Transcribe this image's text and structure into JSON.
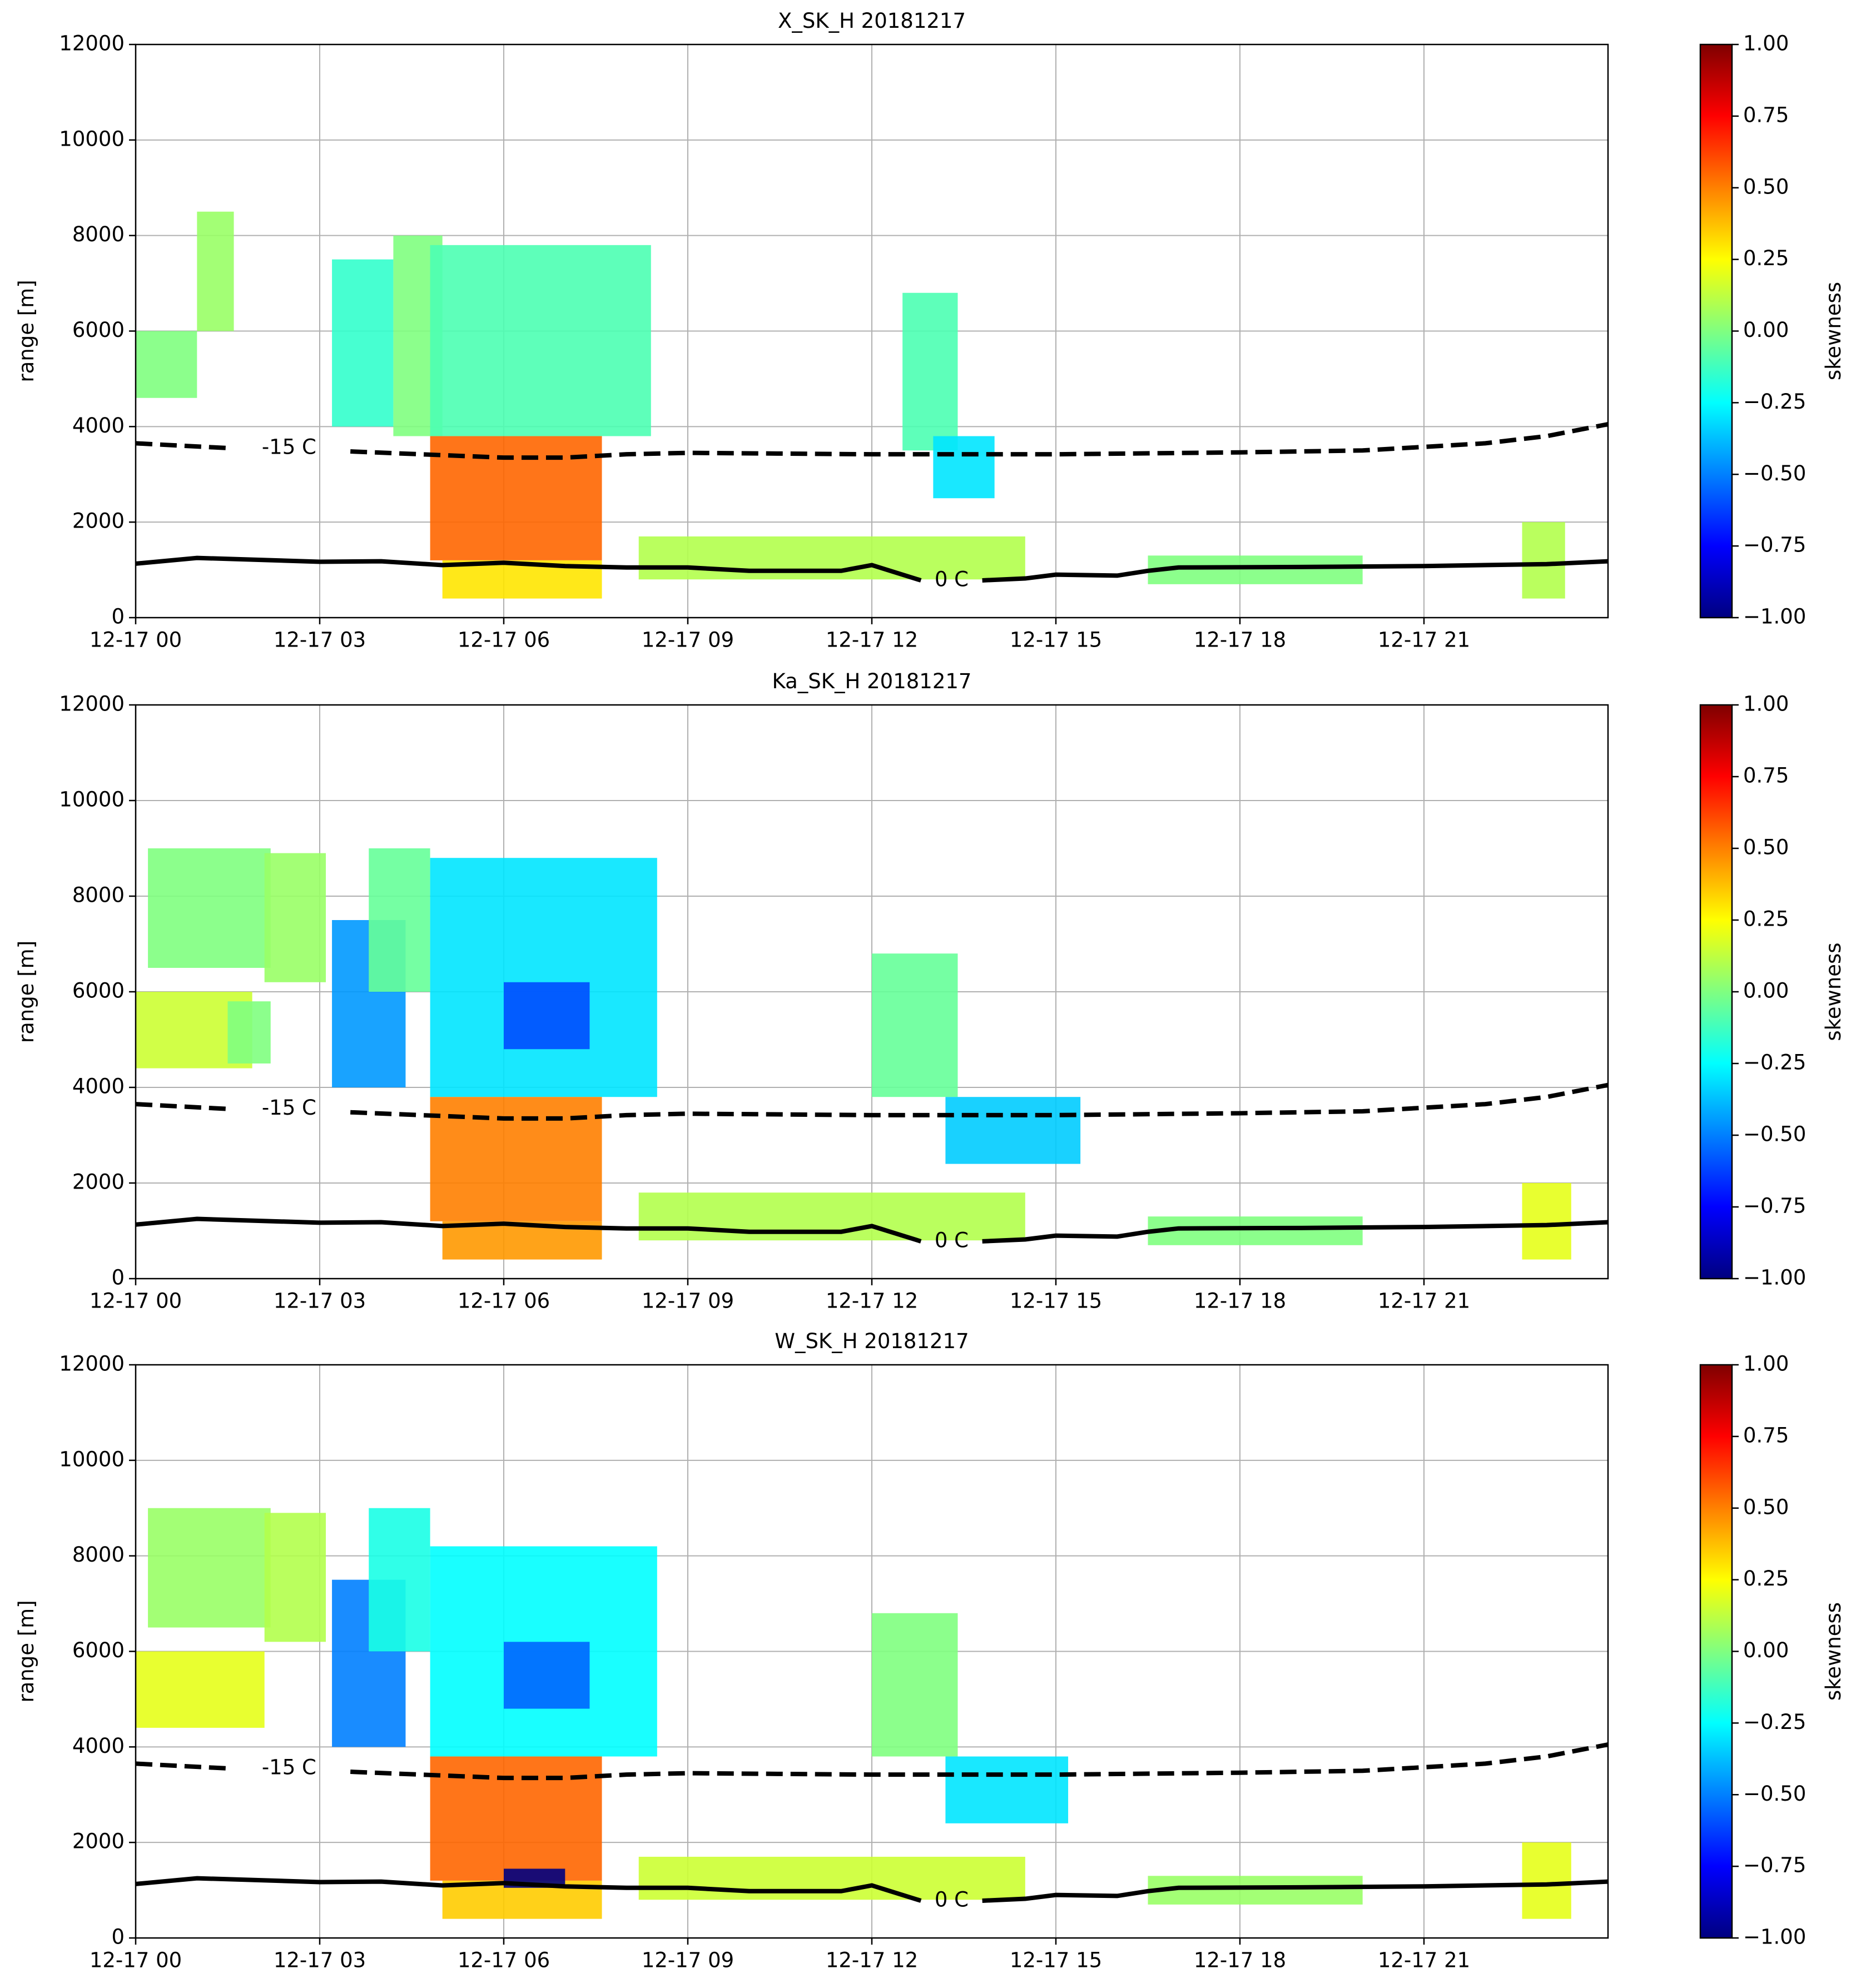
{
  "chart_data": [
    {
      "type": "heatmap",
      "title": "X_SK_H 20181217",
      "ylabel": "range [m]",
      "colorbar_label": "skewness",
      "cmap": "jet",
      "clim": [
        -1,
        1
      ],
      "cticks": [
        {
          "value": 1,
          "label": "1.00"
        },
        {
          "value": 0.75,
          "label": "0.75"
        },
        {
          "value": 0.5,
          "label": "0.50"
        },
        {
          "value": 0.25,
          "label": "0.25"
        },
        {
          "value": 0,
          "label": "0.00"
        },
        {
          "value": -0.25,
          "label": "−0.25"
        },
        {
          "value": -0.5,
          "label": "−0.50"
        },
        {
          "value": -0.75,
          "label": "−0.75"
        },
        {
          "value": -1,
          "label": "−1.00"
        }
      ],
      "xlim": [
        0,
        24
      ],
      "xticks": [
        {
          "value": 0,
          "label": "12-17 00"
        },
        {
          "value": 3,
          "label": "12-17 03"
        },
        {
          "value": 6,
          "label": "12-17 06"
        },
        {
          "value": 9,
          "label": "12-17 09"
        },
        {
          "value": 12,
          "label": "12-17 12"
        },
        {
          "value": 15,
          "label": "12-17 15"
        },
        {
          "value": 18,
          "label": "12-17 18"
        },
        {
          "value": 21,
          "label": "12-17 21"
        }
      ],
      "ylim": [
        0,
        12000
      ],
      "yticks": [
        0,
        2000,
        4000,
        6000,
        8000,
        10000,
        12000
      ],
      "grid": true,
      "cells": [
        {
          "x": [
            0,
            1
          ],
          "y": [
            4600,
            6000
          ],
          "value": 0.0
        },
        {
          "x": [
            1,
            1.6
          ],
          "y": [
            6000,
            8500
          ],
          "value": 0.05
        },
        {
          "x": [
            3.2,
            4.2
          ],
          "y": [
            4000,
            7500
          ],
          "value": -0.15
        },
        {
          "x": [
            4.2,
            5
          ],
          "y": [
            3800,
            8000
          ],
          "value": 0.0
        },
        {
          "x": [
            4.8,
            8.4
          ],
          "y": [
            3800,
            7800
          ],
          "value": -0.1
        },
        {
          "x": [
            4.8,
            7.6
          ],
          "y": [
            1200,
            3800
          ],
          "value": 0.55
        },
        {
          "x": [
            5,
            7.6
          ],
          "y": [
            400,
            1200
          ],
          "value": 0.3
        },
        {
          "x": [
            8.2,
            14.5
          ],
          "y": [
            800,
            1700
          ],
          "value": 0.1
        },
        {
          "x": [
            12.5,
            13.4
          ],
          "y": [
            3500,
            6800
          ],
          "value": -0.1
        },
        {
          "x": [
            13,
            14
          ],
          "y": [
            2500,
            3800
          ],
          "value": -0.3
        },
        {
          "x": [
            16.5,
            20
          ],
          "y": [
            700,
            1300
          ],
          "value": 0.0
        },
        {
          "x": [
            22.6,
            23.3
          ],
          "y": [
            400,
            2000
          ],
          "value": 0.1
        }
      ],
      "series": [
        {
          "name": "-15 C",
          "color": "#000000",
          "style": "dashed",
          "x": [
            0,
            1.5,
            2.5,
            3.5,
            6,
            7,
            8,
            9,
            12,
            15,
            18,
            20,
            22,
            23,
            24
          ],
          "values": [
            3650,
            3550,
            null,
            3480,
            3350,
            3350,
            3420,
            3450,
            3420,
            3420,
            3460,
            3500,
            3650,
            3800,
            4050
          ]
        },
        {
          "name": "0 C",
          "color": "#000000",
          "style": "solid",
          "x": [
            0,
            1,
            3,
            4,
            5,
            6,
            7,
            8,
            9,
            10,
            11.5,
            12,
            12.5,
            12.8,
            13.3,
            13.8,
            14.5,
            15,
            16,
            16.5,
            17,
            19,
            21,
            23,
            24
          ],
          "values": [
            1130,
            1250,
            1170,
            1180,
            1100,
            1150,
            1080,
            1050,
            1050,
            980,
            980,
            1100,
            900,
            780,
            null,
            780,
            820,
            900,
            880,
            980,
            1050,
            1060,
            1080,
            1120,
            1180
          ]
        }
      ]
    },
    {
      "type": "heatmap",
      "title": "Ka_SK_H 20181217",
      "ylabel": "range [m]",
      "colorbar_label": "skewness",
      "cmap": "jet",
      "clim": [
        -1,
        1
      ],
      "cticks": [
        {
          "value": 1,
          "label": "1.00"
        },
        {
          "value": 0.75,
          "label": "0.75"
        },
        {
          "value": 0.5,
          "label": "0.50"
        },
        {
          "value": 0.25,
          "label": "0.25"
        },
        {
          "value": 0,
          "label": "0.00"
        },
        {
          "value": -0.25,
          "label": "−0.25"
        },
        {
          "value": -0.5,
          "label": "−0.50"
        },
        {
          "value": -0.75,
          "label": "−0.75"
        },
        {
          "value": -1,
          "label": "−1.00"
        }
      ],
      "xlim": [
        0,
        24
      ],
      "xticks": [
        {
          "value": 0,
          "label": "12-17 00"
        },
        {
          "value": 3,
          "label": "12-17 03"
        },
        {
          "value": 6,
          "label": "12-17 06"
        },
        {
          "value": 9,
          "label": "12-17 09"
        },
        {
          "value": 12,
          "label": "12-17 12"
        },
        {
          "value": 15,
          "label": "12-17 15"
        },
        {
          "value": 18,
          "label": "12-17 18"
        },
        {
          "value": 21,
          "label": "12-17 21"
        }
      ],
      "ylim": [
        0,
        12000
      ],
      "yticks": [
        0,
        2000,
        4000,
        6000,
        8000,
        10000,
        12000
      ],
      "grid": true,
      "cells": [
        {
          "x": [
            0,
            1.9
          ],
          "y": [
            4400,
            6000
          ],
          "value": 0.15
        },
        {
          "x": [
            0.2,
            2.2
          ],
          "y": [
            6500,
            9000
          ],
          "value": 0.0
        },
        {
          "x": [
            2.1,
            3.1
          ],
          "y": [
            6200,
            8900
          ],
          "value": 0.05
        },
        {
          "x": [
            1.5,
            2.2
          ],
          "y": [
            4500,
            5800
          ],
          "value": 0.0
        },
        {
          "x": [
            3.2,
            4.4
          ],
          "y": [
            4000,
            7500
          ],
          "value": -0.45
        },
        {
          "x": [
            3.8,
            4.8
          ],
          "y": [
            6000,
            9000
          ],
          "value": -0.05
        },
        {
          "x": [
            4.8,
            8.5
          ],
          "y": [
            3800,
            8800
          ],
          "value": -0.3
        },
        {
          "x": [
            6,
            7.4
          ],
          "y": [
            4800,
            6200
          ],
          "value": -0.6
        },
        {
          "x": [
            4.8,
            7.6
          ],
          "y": [
            1200,
            3800
          ],
          "value": 0.5
        },
        {
          "x": [
            5,
            7.6
          ],
          "y": [
            400,
            1200
          ],
          "value": 0.45
        },
        {
          "x": [
            8.2,
            14.5
          ],
          "y": [
            800,
            1800
          ],
          "value": 0.1
        },
        {
          "x": [
            12,
            13.4
          ],
          "y": [
            3800,
            6800
          ],
          "value": -0.05
        },
        {
          "x": [
            13.2,
            15.4
          ],
          "y": [
            2400,
            3800
          ],
          "value": -0.35
        },
        {
          "x": [
            16.5,
            20
          ],
          "y": [
            700,
            1300
          ],
          "value": 0.0
        },
        {
          "x": [
            22.6,
            23.4
          ],
          "y": [
            400,
            2000
          ],
          "value": 0.2
        }
      ],
      "series": [
        {
          "name": "-15 C",
          "color": "#000000",
          "style": "dashed",
          "x": [
            0,
            1.5,
            2.5,
            3.5,
            6,
            7,
            8,
            9,
            12,
            15,
            18,
            20,
            22,
            23,
            24
          ],
          "values": [
            3650,
            3550,
            null,
            3480,
            3350,
            3350,
            3420,
            3450,
            3420,
            3420,
            3460,
            3500,
            3650,
            3800,
            4050
          ]
        },
        {
          "name": "0 C",
          "color": "#000000",
          "style": "solid",
          "x": [
            0,
            1,
            3,
            4,
            5,
            6,
            7,
            8,
            9,
            10,
            11.5,
            12,
            12.5,
            12.8,
            13.3,
            13.8,
            14.5,
            15,
            16,
            16.5,
            17,
            19,
            21,
            23,
            24
          ],
          "values": [
            1130,
            1250,
            1170,
            1180,
            1100,
            1150,
            1080,
            1050,
            1050,
            980,
            980,
            1100,
            900,
            780,
            null,
            780,
            820,
            900,
            880,
            980,
            1050,
            1060,
            1080,
            1120,
            1180
          ]
        }
      ]
    },
    {
      "type": "heatmap",
      "title": "W_SK_H 20181217",
      "ylabel": "range [m]",
      "colorbar_label": "skewness",
      "cmap": "jet",
      "clim": [
        -1,
        1
      ],
      "cticks": [
        {
          "value": 1,
          "label": "1.00"
        },
        {
          "value": 0.75,
          "label": "0.75"
        },
        {
          "value": 0.5,
          "label": "0.50"
        },
        {
          "value": 0.25,
          "label": "0.25"
        },
        {
          "value": 0,
          "label": "0.00"
        },
        {
          "value": -0.25,
          "label": "−0.25"
        },
        {
          "value": -0.5,
          "label": "−0.50"
        },
        {
          "value": -0.75,
          "label": "−0.75"
        },
        {
          "value": -1,
          "label": "−1.00"
        }
      ],
      "xlim": [
        0,
        24
      ],
      "xticks": [
        {
          "value": 0,
          "label": "12-17 00"
        },
        {
          "value": 3,
          "label": "12-17 03"
        },
        {
          "value": 6,
          "label": "12-17 06"
        },
        {
          "value": 9,
          "label": "12-17 09"
        },
        {
          "value": 12,
          "label": "12-17 12"
        },
        {
          "value": 15,
          "label": "12-17 15"
        },
        {
          "value": 18,
          "label": "12-17 18"
        },
        {
          "value": 21,
          "label": "12-17 21"
        }
      ],
      "ylim": [
        0,
        12000
      ],
      "yticks": [
        0,
        2000,
        4000,
        6000,
        8000,
        10000,
        12000
      ],
      "grid": true,
      "cells": [
        {
          "x": [
            0,
            2.1
          ],
          "y": [
            4400,
            6000
          ],
          "value": 0.2
        },
        {
          "x": [
            0.2,
            2.2
          ],
          "y": [
            6500,
            9000
          ],
          "value": 0.05
        },
        {
          "x": [
            2.1,
            3.1
          ],
          "y": [
            6200,
            8900
          ],
          "value": 0.1
        },
        {
          "x": [
            3.2,
            4.4
          ],
          "y": [
            4000,
            7500
          ],
          "value": -0.5
        },
        {
          "x": [
            3.8,
            4.8
          ],
          "y": [
            6000,
            9000
          ],
          "value": -0.2
        },
        {
          "x": [
            4.8,
            8.5
          ],
          "y": [
            3800,
            8200
          ],
          "value": -0.25
        },
        {
          "x": [
            6,
            7.4
          ],
          "y": [
            4800,
            6200
          ],
          "value": -0.55
        },
        {
          "x": [
            4.8,
            7.6
          ],
          "y": [
            1200,
            3800
          ],
          "value": 0.55
        },
        {
          "x": [
            5,
            7.6
          ],
          "y": [
            400,
            1200
          ],
          "value": 0.35
        },
        {
          "x": [
            6,
            7
          ],
          "y": [
            1050,
            1450
          ],
          "value": -1
        },
        {
          "x": [
            8.2,
            14.5
          ],
          "y": [
            800,
            1700
          ],
          "value": 0.15
        },
        {
          "x": [
            12,
            13.4
          ],
          "y": [
            3800,
            6800
          ],
          "value": 0.0
        },
        {
          "x": [
            13.2,
            15.2
          ],
          "y": [
            2400,
            3800
          ],
          "value": -0.3
        },
        {
          "x": [
            16.5,
            20
          ],
          "y": [
            700,
            1300
          ],
          "value": 0.05
        },
        {
          "x": [
            22.6,
            23.4
          ],
          "y": [
            400,
            2000
          ],
          "value": 0.2
        }
      ],
      "series": [
        {
          "name": "-15 C",
          "color": "#000000",
          "style": "dashed",
          "x": [
            0,
            1.5,
            2.5,
            3.5,
            6,
            7,
            8,
            9,
            12,
            15,
            18,
            20,
            22,
            23,
            24
          ],
          "values": [
            3650,
            3550,
            null,
            3480,
            3350,
            3350,
            3420,
            3450,
            3420,
            3420,
            3460,
            3500,
            3650,
            3800,
            4050
          ]
        },
        {
          "name": "0 C",
          "color": "#000000",
          "style": "solid",
          "x": [
            0,
            1,
            3,
            4,
            5,
            6,
            7,
            8,
            9,
            10,
            11.5,
            12,
            12.5,
            12.8,
            13.3,
            13.8,
            14.5,
            15,
            16,
            16.5,
            17,
            19,
            21,
            23,
            24
          ],
          "values": [
            1130,
            1250,
            1170,
            1180,
            1100,
            1150,
            1080,
            1050,
            1050,
            980,
            980,
            1100,
            900,
            780,
            null,
            780,
            820,
            900,
            880,
            980,
            1050,
            1060,
            1080,
            1120,
            1180
          ]
        }
      ]
    }
  ]
}
